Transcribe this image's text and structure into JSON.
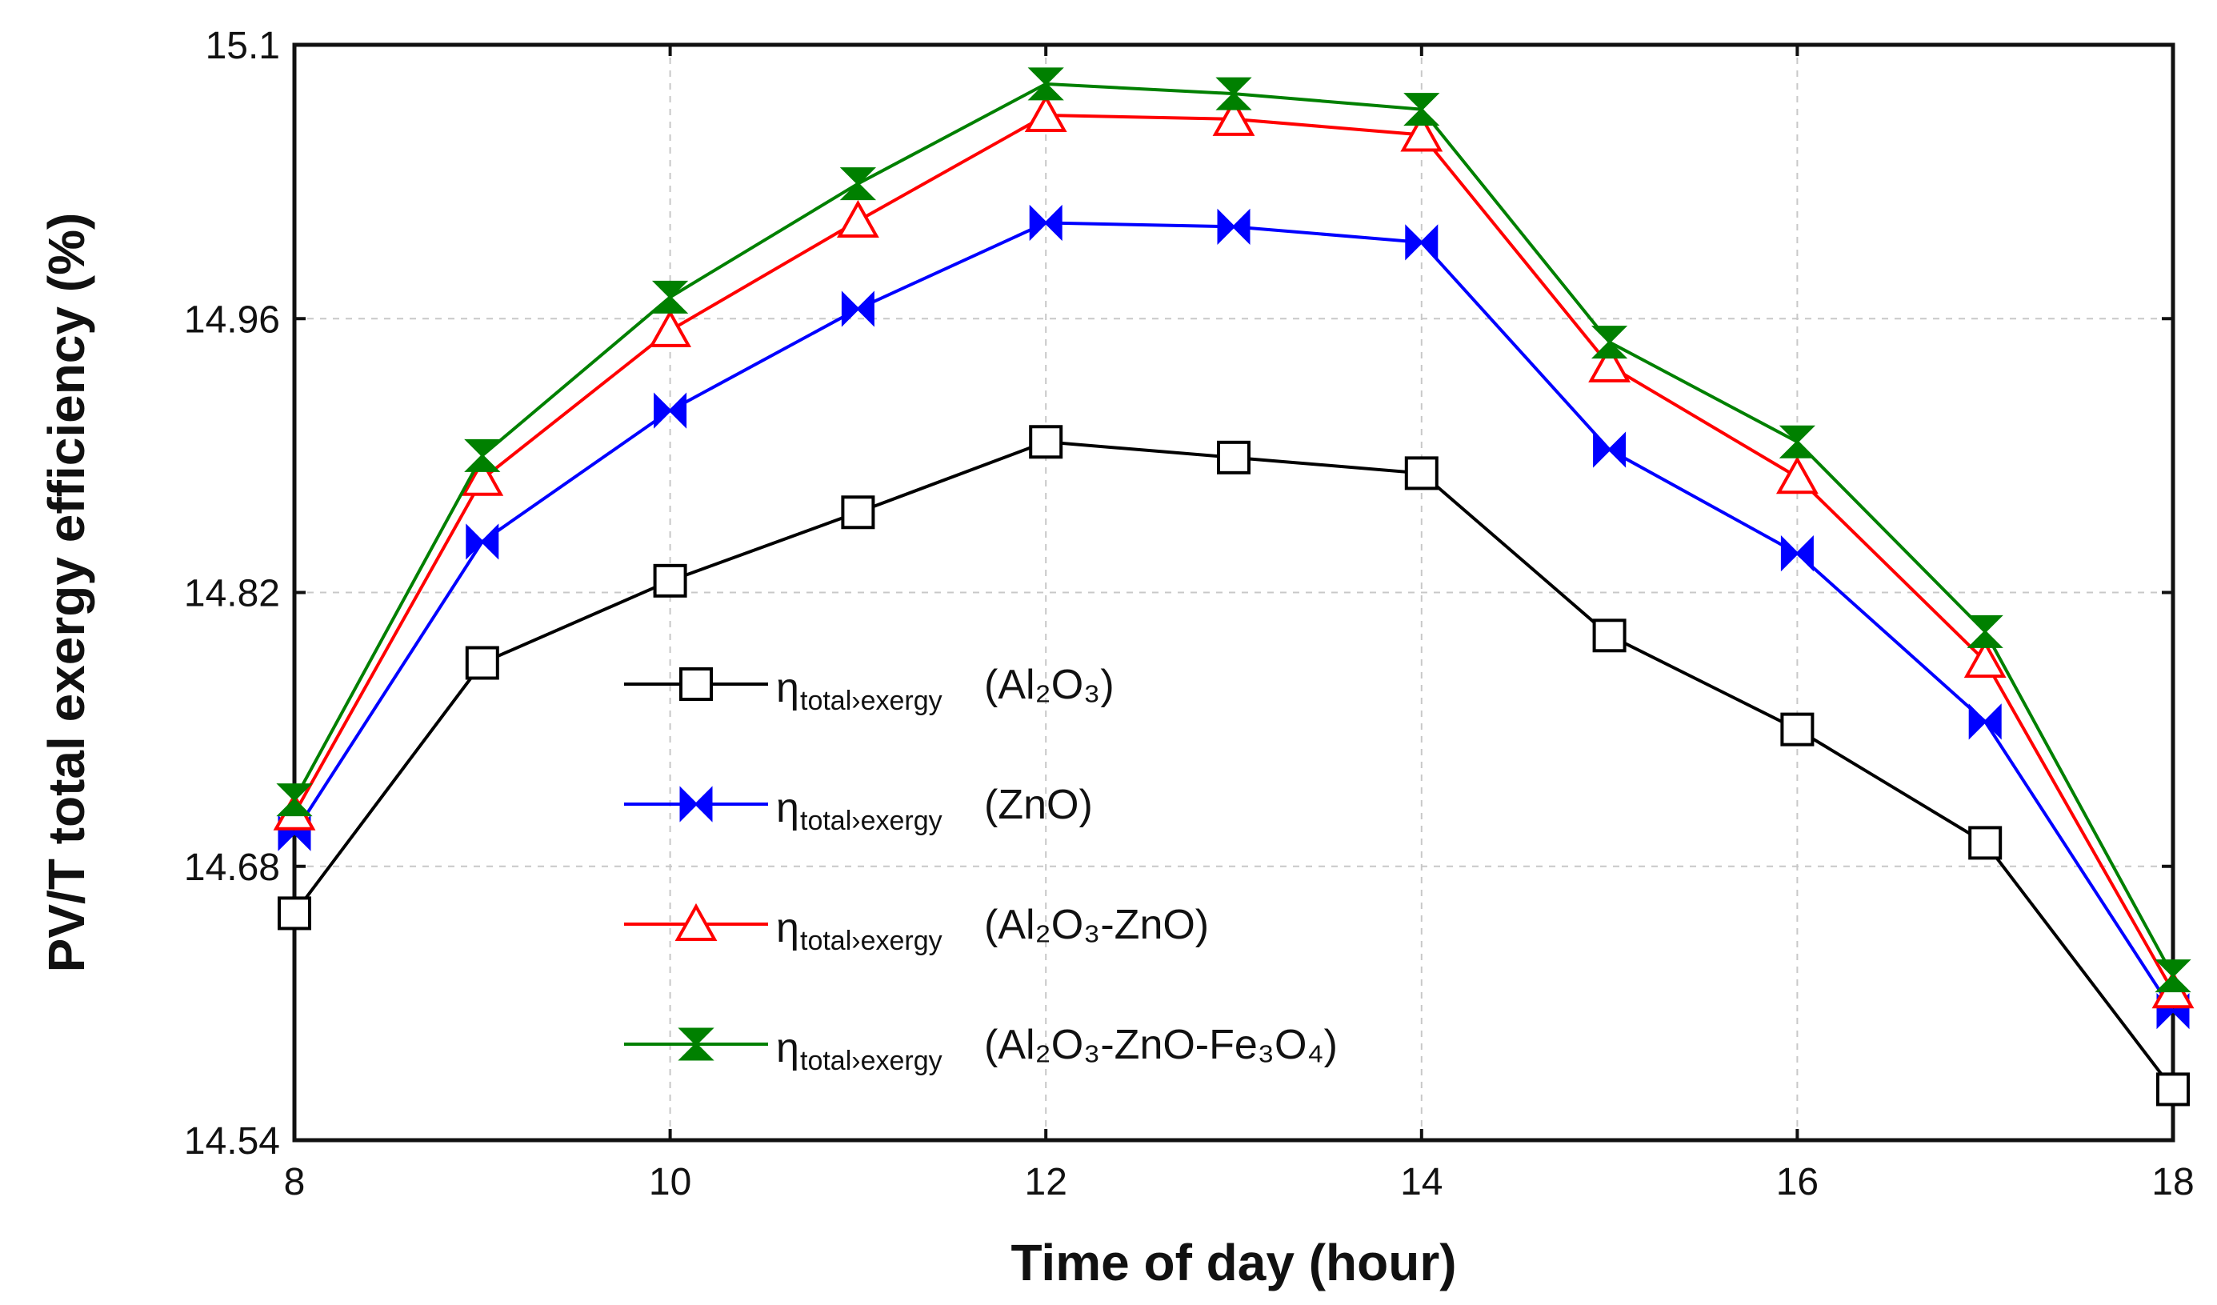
{
  "chart_data": {
    "type": "line",
    "title": "",
    "xlabel": "Time of day (hour)",
    "ylabel": "PV/T total exergy efficiency (%)",
    "xlim": [
      8,
      18
    ],
    "ylim": [
      14.54,
      15.1
    ],
    "x_ticks": [
      8,
      10,
      12,
      14,
      16,
      18
    ],
    "y_ticks": [
      14.54,
      14.68,
      14.82,
      14.96,
      15.1
    ],
    "y_tick_labels": [
      "14.54",
      "14.68",
      "14.82",
      "14.96",
      "15.1"
    ],
    "x_tick_labels": [
      "8",
      "10",
      "12",
      "14",
      "16",
      "18"
    ],
    "grid": true,
    "legend_position": "center-left",
    "x": [
      8,
      9,
      10,
      11,
      12,
      13,
      14,
      15,
      16,
      17,
      18
    ],
    "series": [
      {
        "name": "ηtotal,exergy (Al2O3)",
        "legend_symbol": "η",
        "legend_sub": "total›exergy",
        "legend_paren": "(Al₂O₃)",
        "color": "#000000",
        "marker": "square",
        "values": [
          14.656,
          14.784,
          14.826,
          14.861,
          14.897,
          14.889,
          14.881,
          14.798,
          14.75,
          14.692,
          14.566
        ]
      },
      {
        "name": "ηtotal,exergy (ZnO)",
        "legend_symbol": "η",
        "legend_sub": "total›exergy",
        "legend_paren": "(ZnO)",
        "color": "#0000ff",
        "marker": "bowtie",
        "values": [
          14.697,
          14.846,
          14.913,
          14.965,
          15.009,
          15.007,
          14.999,
          14.893,
          14.84,
          14.754,
          14.606
        ]
      },
      {
        "name": "ηtotal,exergy (Al2O3-ZnO)",
        "legend_symbol": "η",
        "legend_sub": "total›exergy",
        "legend_paren": "(Al₂O₃-ZnO)",
        "color": "#ff0000",
        "marker": "triangle",
        "values": [
          14.707,
          14.878,
          14.954,
          15.01,
          15.064,
          15.062,
          15.054,
          14.936,
          14.879,
          14.785,
          14.616
        ]
      },
      {
        "name": "ηtotal,exergy (Al2O3-ZnO-Fe3O4)",
        "legend_symbol": "η",
        "legend_sub": "total›exergy",
        "legend_paren": "(Al₂O₃-ZnO-Fe₃O₄)",
        "color": "#008000",
        "marker": "hourglass",
        "values": [
          14.714,
          14.89,
          14.971,
          15.029,
          15.08,
          15.075,
          15.067,
          14.948,
          14.897,
          14.8,
          14.624
        ]
      }
    ]
  }
}
